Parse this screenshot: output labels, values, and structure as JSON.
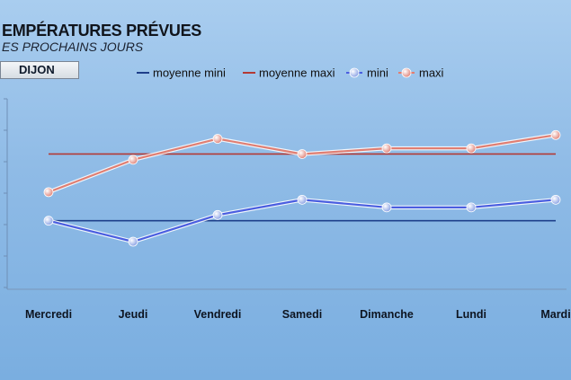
{
  "header": {
    "title": "EMPÉRATURES PRÉVUES",
    "subtitle": "ES PROCHAINS JOURS",
    "city": "DIJON"
  },
  "chart_data": {
    "type": "line",
    "categories": [
      "Mercredi",
      "Jeudi",
      "Vendredi",
      "Samedi",
      "Dimanche",
      "Lundi",
      "Mardi"
    ],
    "ylim": [
      0,
      100
    ],
    "grid": false,
    "legend": "top",
    "series": [
      {
        "name": "moyenne mini",
        "kind": "reference",
        "color": "#1e3f8a",
        "values": [
          36,
          36,
          36,
          36,
          36,
          36,
          36
        ]
      },
      {
        "name": "moyenne maxi",
        "kind": "reference",
        "color": "#b33a35",
        "values": [
          71,
          71,
          71,
          71,
          71,
          71,
          71
        ]
      },
      {
        "name": "mini",
        "kind": "marker",
        "color": "#4a5ee0",
        "marker_color": "#c9d4f2",
        "values": [
          36,
          25,
          39,
          47,
          43,
          43,
          47
        ]
      },
      {
        "name": "maxi",
        "kind": "marker",
        "color": "#e07e72",
        "marker_color": "#f3c7bf",
        "values": [
          51,
          68,
          79,
          71,
          74,
          74,
          81
        ]
      }
    ]
  }
}
